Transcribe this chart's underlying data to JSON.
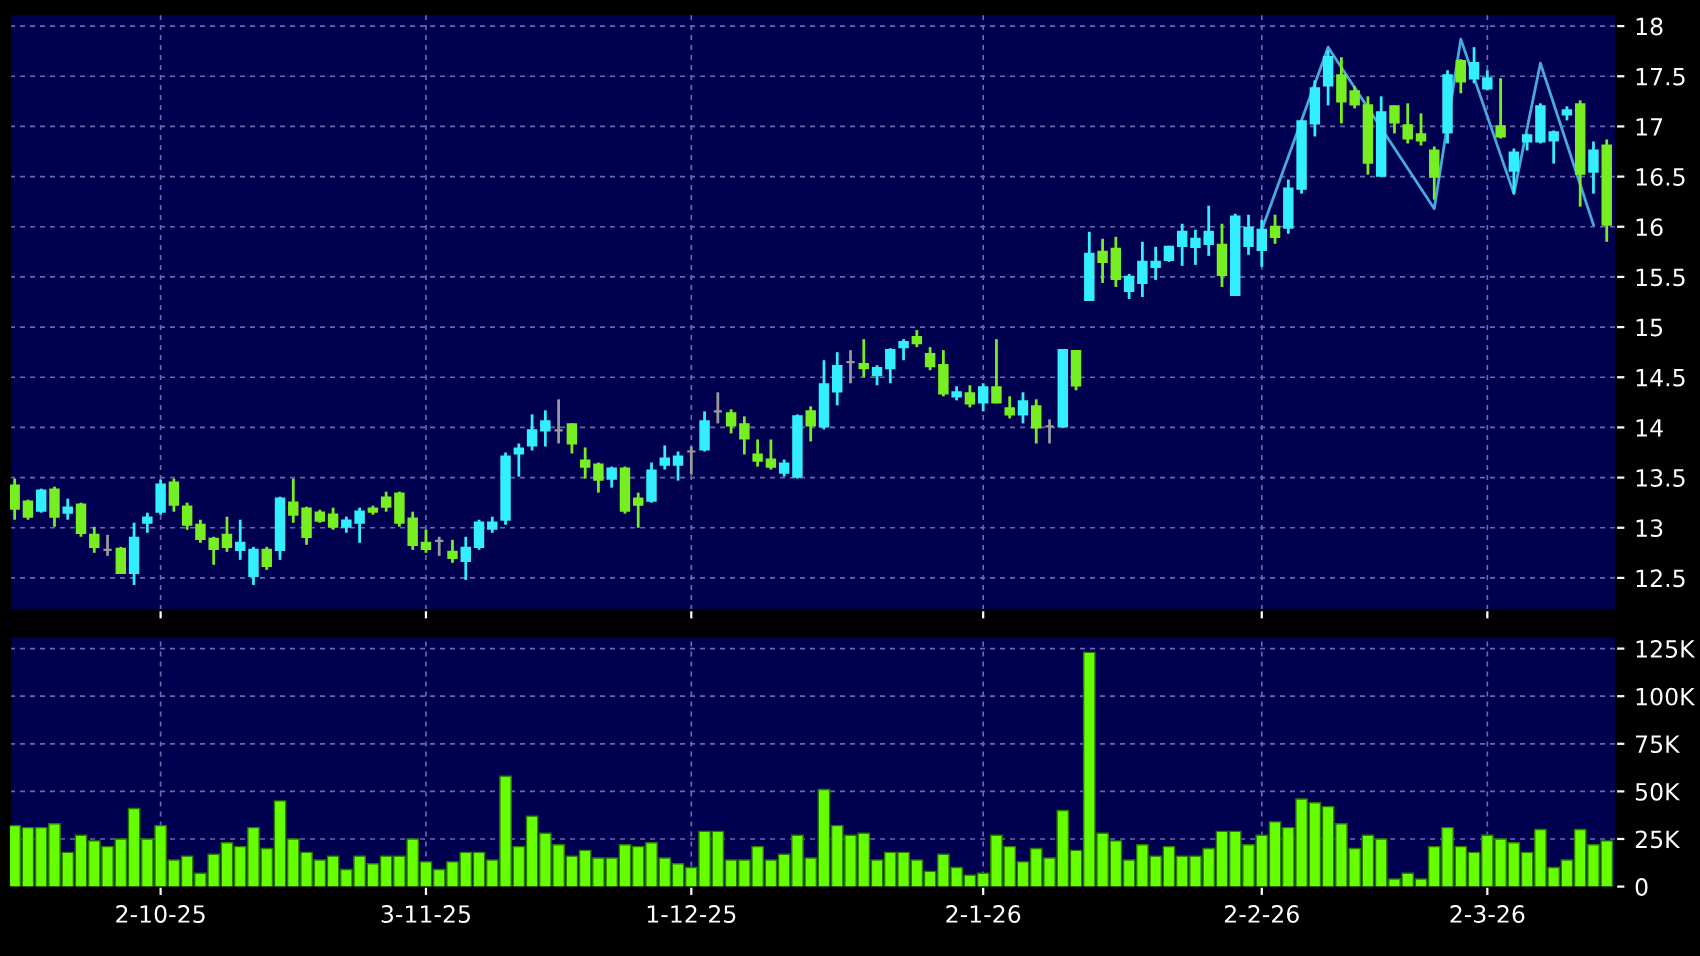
{
  "chart_data": [
    {
      "type": "candlestick",
      "grid": true,
      "tick_labels": "y",
      "ylim": [
        12.18,
        18.12
      ],
      "yticks": [
        12.5,
        13,
        13.5,
        14,
        14.5,
        15,
        15.5,
        16,
        16.5,
        17,
        17.5,
        18
      ],
      "categories": [
        null,
        null,
        null,
        null,
        null,
        null,
        null,
        null,
        null,
        null,
        null,
        null,
        null,
        null,
        null,
        null,
        null,
        null,
        null,
        null,
        null,
        null,
        null,
        null,
        null,
        null,
        null,
        null,
        null,
        null,
        null,
        null,
        null,
        null,
        null,
        null,
        null,
        null,
        null,
        null,
        null,
        null,
        null,
        null,
        null,
        null,
        null,
        null,
        null,
        null,
        null,
        null,
        null,
        null,
        null,
        null,
        null,
        null,
        null,
        null,
        null,
        null,
        null,
        null,
        null,
        null,
        null,
        null,
        null,
        null,
        null,
        null,
        null,
        null,
        null,
        null,
        null,
        null,
        null,
        null,
        null,
        null,
        null,
        null,
        null,
        null,
        null,
        null,
        null,
        null,
        null,
        null,
        null,
        null,
        null,
        null,
        null,
        null,
        null,
        null,
        null,
        null,
        null,
        null,
        null,
        null,
        null,
        null,
        null,
        null,
        null,
        null,
        null,
        null,
        null,
        null,
        null,
        null,
        null,
        null,
        null
      ],
      "ohlc": [
        [
          13.42,
          13.49,
          13.08,
          13.19
        ],
        [
          13.26,
          13.28,
          13.08,
          13.11
        ],
        [
          13.17,
          13.39,
          13.15,
          13.37
        ],
        [
          13.38,
          13.41,
          13.01,
          13.11
        ],
        [
          13.15,
          13.29,
          13.08,
          13.2
        ],
        [
          13.23,
          13.25,
          12.91,
          12.95
        ],
        [
          12.93,
          13.01,
          12.75,
          12.81
        ],
        [
          12.78,
          12.93,
          12.72,
          12.78
        ],
        [
          12.79,
          12.81,
          12.55,
          12.55
        ],
        [
          12.55,
          13.05,
          12.43,
          12.9
        ],
        [
          13.05,
          13.15,
          12.95,
          13.1
        ],
        [
          13.16,
          13.48,
          13.13,
          13.43
        ],
        [
          13.45,
          13.49,
          13.16,
          13.23
        ],
        [
          13.21,
          13.25,
          12.98,
          13.03
        ],
        [
          13.03,
          13.08,
          12.85,
          12.89
        ],
        [
          12.89,
          12.91,
          12.63,
          12.79
        ],
        [
          12.93,
          13.11,
          12.76,
          12.81
        ],
        [
          12.78,
          13.08,
          12.68,
          12.85
        ],
        [
          12.52,
          12.81,
          12.43,
          12.78
        ],
        [
          12.78,
          12.81,
          12.58,
          12.62
        ],
        [
          12.78,
          13.31,
          12.68,
          13.29
        ],
        [
          13.25,
          13.49,
          13.05,
          13.13
        ],
        [
          13.19,
          13.21,
          12.83,
          12.91
        ],
        [
          13.15,
          13.18,
          13.05,
          13.07
        ],
        [
          13.13,
          13.2,
          12.98,
          13.01
        ],
        [
          13.01,
          13.11,
          12.95,
          13.07
        ],
        [
          13.05,
          13.2,
          12.85,
          13.16
        ],
        [
          13.19,
          13.22,
          13.13,
          13.16
        ],
        [
          13.3,
          13.36,
          13.16,
          13.21
        ],
        [
          13.34,
          13.36,
          13.01,
          13.05
        ],
        [
          13.09,
          13.16,
          12.78,
          12.83
        ],
        [
          12.85,
          12.98,
          12.75,
          12.79
        ],
        [
          12.87,
          12.91,
          12.72,
          12.87
        ],
        [
          12.76,
          12.88,
          12.65,
          12.7
        ],
        [
          12.67,
          12.91,
          12.48,
          12.8
        ],
        [
          12.81,
          13.08,
          12.78,
          13.05
        ],
        [
          12.99,
          13.11,
          12.95,
          13.05
        ],
        [
          13.08,
          13.75,
          13.03,
          13.71
        ],
        [
          13.74,
          13.84,
          13.51,
          13.79
        ],
        [
          13.82,
          14.13,
          13.77,
          13.97
        ],
        [
          13.97,
          14.17,
          13.81,
          14.06
        ],
        [
          13.97,
          14.28,
          13.84,
          13.97
        ],
        [
          14.03,
          14.04,
          13.74,
          13.84
        ],
        [
          13.67,
          13.8,
          13.49,
          13.61
        ],
        [
          13.63,
          13.65,
          13.35,
          13.48
        ],
        [
          13.49,
          13.61,
          13.4,
          13.59
        ],
        [
          13.59,
          13.61,
          13.14,
          13.17
        ],
        [
          13.29,
          13.35,
          13.0,
          13.23
        ],
        [
          13.27,
          13.65,
          13.25,
          13.57
        ],
        [
          13.63,
          13.82,
          13.58,
          13.69
        ],
        [
          13.63,
          13.76,
          13.47,
          13.71
        ],
        [
          13.76,
          13.81,
          13.53,
          13.76
        ],
        [
          13.78,
          14.16,
          13.76,
          14.06
        ],
        [
          14.16,
          14.35,
          14.04,
          14.16
        ],
        [
          14.14,
          14.18,
          13.94,
          14.02
        ],
        [
          14.03,
          14.11,
          13.73,
          13.89
        ],
        [
          13.73,
          13.88,
          13.61,
          13.67
        ],
        [
          13.68,
          13.88,
          13.58,
          13.61
        ],
        [
          13.55,
          13.68,
          13.51,
          13.64
        ],
        [
          13.51,
          14.13,
          13.49,
          14.11
        ],
        [
          14.16,
          14.21,
          13.86,
          14.02
        ],
        [
          14.01,
          14.67,
          13.98,
          14.43
        ],
        [
          14.36,
          14.75,
          14.22,
          14.61
        ],
        [
          14.65,
          14.77,
          14.44,
          14.65
        ],
        [
          14.63,
          14.88,
          14.5,
          14.59
        ],
        [
          14.52,
          14.62,
          14.42,
          14.59
        ],
        [
          14.59,
          14.79,
          14.44,
          14.77
        ],
        [
          14.8,
          14.88,
          14.67,
          14.85
        ],
        [
          14.9,
          14.97,
          14.8,
          14.84
        ],
        [
          14.73,
          14.8,
          14.57,
          14.61
        ],
        [
          14.62,
          14.77,
          14.31,
          14.34
        ],
        [
          14.31,
          14.41,
          14.27,
          14.35
        ],
        [
          14.34,
          14.42,
          14.2,
          14.24
        ],
        [
          14.25,
          14.44,
          14.16,
          14.4
        ],
        [
          14.4,
          14.88,
          14.24,
          14.25
        ],
        [
          14.19,
          14.31,
          14.09,
          14.13
        ],
        [
          14.13,
          14.35,
          14.04,
          14.26
        ],
        [
          14.21,
          14.28,
          13.84,
          14.0
        ],
        [
          14.01,
          14.08,
          13.84,
          14.01
        ],
        [
          14.01,
          14.77,
          14.0,
          14.77
        ],
        [
          14.76,
          14.76,
          14.37,
          14.42
        ],
        [
          15.27,
          15.95,
          15.27,
          15.73
        ],
        [
          15.75,
          15.88,
          15.44,
          15.65
        ],
        [
          15.78,
          15.9,
          15.4,
          15.48
        ],
        [
          15.36,
          15.53,
          15.28,
          15.5
        ],
        [
          15.44,
          15.85,
          15.3,
          15.65
        ],
        [
          15.6,
          15.8,
          15.47,
          15.65
        ],
        [
          15.67,
          15.81,
          15.65,
          15.8
        ],
        [
          15.81,
          16.03,
          15.61,
          15.95
        ],
        [
          15.8,
          15.97,
          15.62,
          15.88
        ],
        [
          15.83,
          16.21,
          15.71,
          15.95
        ],
        [
          15.82,
          16.03,
          15.4,
          15.52
        ],
        [
          15.32,
          16.13,
          15.32,
          16.1
        ],
        [
          15.81,
          16.12,
          15.72,
          15.99
        ],
        [
          15.77,
          16.07,
          15.6,
          15.97
        ],
        [
          16.0,
          16.12,
          15.83,
          15.9
        ],
        [
          15.99,
          16.47,
          15.93,
          16.38
        ],
        [
          16.38,
          17.06,
          16.33,
          17.05
        ],
        [
          17.03,
          17.46,
          16.9,
          17.38
        ],
        [
          17.41,
          17.76,
          17.21,
          17.69
        ],
        [
          17.51,
          17.69,
          17.03,
          17.25
        ],
        [
          17.35,
          17.4,
          17.18,
          17.22
        ],
        [
          17.21,
          17.3,
          16.52,
          16.64
        ],
        [
          16.51,
          17.3,
          16.5,
          17.14
        ],
        [
          17.2,
          17.21,
          16.93,
          17.04
        ],
        [
          17.01,
          17.23,
          16.83,
          16.88
        ],
        [
          16.92,
          17.13,
          16.81,
          16.86
        ],
        [
          16.76,
          16.8,
          16.27,
          16.5
        ],
        [
          16.94,
          17.56,
          16.83,
          17.51
        ],
        [
          17.65,
          17.67,
          17.33,
          17.45
        ],
        [
          17.48,
          17.79,
          17.43,
          17.63
        ],
        [
          17.38,
          17.56,
          17.36,
          17.48
        ],
        [
          17.0,
          17.48,
          16.88,
          16.9
        ],
        [
          16.56,
          16.78,
          16.33,
          16.74
        ],
        [
          16.85,
          16.93,
          16.76,
          16.91
        ],
        [
          16.85,
          17.23,
          16.83,
          17.2
        ],
        [
          16.86,
          16.96,
          16.63,
          16.94
        ],
        [
          17.12,
          17.2,
          17.06,
          17.16
        ],
        [
          17.22,
          17.26,
          16.2,
          16.53
        ],
        [
          16.55,
          16.85,
          16.33,
          16.76
        ],
        [
          16.81,
          16.87,
          15.85,
          16.02
        ]
      ],
      "colors": [
        "#77ee22",
        "#77ee22",
        "#33eeff",
        "#77ee22",
        "#33eeff",
        "#77ee22",
        "#77ee22",
        "#999999",
        "#77ee22",
        "#33eeff",
        "#33eeff",
        "#33eeff",
        "#77ee22",
        "#77ee22",
        "#77ee22",
        "#77ee22",
        "#77ee22",
        "#33eeff",
        "#33eeff",
        "#77ee22",
        "#33eeff",
        "#77ee22",
        "#77ee22",
        "#77ee22",
        "#77ee22",
        "#33eeff",
        "#33eeff",
        "#77ee22",
        "#77ee22",
        "#77ee22",
        "#77ee22",
        "#77ee22",
        "#999999",
        "#77ee22",
        "#33eeff",
        "#33eeff",
        "#33eeff",
        "#33eeff",
        "#33eeff",
        "#33eeff",
        "#33eeff",
        "#999999",
        "#77ee22",
        "#77ee22",
        "#77ee22",
        "#33eeff",
        "#77ee22",
        "#77ee22",
        "#33eeff",
        "#33eeff",
        "#33eeff",
        "#999999",
        "#33eeff",
        "#999999",
        "#77ee22",
        "#77ee22",
        "#77ee22",
        "#77ee22",
        "#33eeff",
        "#33eeff",
        "#77ee22",
        "#33eeff",
        "#33eeff",
        "#999999",
        "#77ee22",
        "#33eeff",
        "#33eeff",
        "#33eeff",
        "#77ee22",
        "#77ee22",
        "#77ee22",
        "#33eeff",
        "#77ee22",
        "#33eeff",
        "#77ee22",
        "#77ee22",
        "#33eeff",
        "#77ee22",
        "#999999",
        "#33eeff",
        "#77ee22",
        "#33eeff",
        "#77ee22",
        "#77ee22",
        "#33eeff",
        "#33eeff",
        "#33eeff",
        "#33eeff",
        "#33eeff",
        "#33eeff",
        "#33eeff",
        "#77ee22",
        "#33eeff",
        "#33eeff",
        "#33eeff",
        "#77ee22",
        "#33eeff",
        "#33eeff",
        "#33eeff",
        "#33eeff",
        "#77ee22",
        "#77ee22",
        "#77ee22",
        "#33eeff",
        "#77ee22",
        "#77ee22",
        "#77ee22",
        "#77ee22",
        "#33eeff",
        "#77ee22",
        "#33eeff",
        "#33eeff",
        "#77ee22",
        "#33eeff",
        "#33eeff",
        "#33eeff",
        "#33eeff",
        "#33eeff",
        "#77ee22",
        "#33eeff",
        "#77ee22"
      ],
      "series": [
        {
          "type": "line",
          "color": "#4aa8e0",
          "values": [
            null,
            null,
            null,
            null,
            null,
            null,
            null,
            null,
            null,
            null,
            null,
            null,
            null,
            null,
            null,
            null,
            null,
            null,
            null,
            null,
            null,
            null,
            null,
            null,
            null,
            null,
            null,
            null,
            null,
            null,
            null,
            null,
            null,
            null,
            null,
            null,
            null,
            null,
            null,
            null,
            null,
            null,
            null,
            null,
            null,
            null,
            null,
            null,
            null,
            null,
            null,
            null,
            null,
            null,
            null,
            null,
            null,
            null,
            null,
            null,
            null,
            null,
            null,
            null,
            null,
            null,
            null,
            null,
            null,
            null,
            null,
            null,
            null,
            null,
            null,
            null,
            null,
            null,
            null,
            null,
            null,
            null,
            null,
            null,
            null,
            null,
            null,
            null,
            null,
            null,
            null,
            null,
            null,
            null,
            15.97,
            null,
            null,
            null,
            null,
            17.79,
            null,
            null,
            null,
            null,
            null,
            null,
            null,
            16.18,
            null,
            17.87,
            null,
            null,
            null,
            16.33,
            null,
            17.63,
            null,
            null,
            null,
            16.02,
            null
          ]
        }
      ]
    },
    {
      "type": "bar",
      "grid": true,
      "color": "#66ff00",
      "ylim": [
        0,
        131.6
      ],
      "yticks": [
        {
          "value": 0,
          "label": "0"
        },
        {
          "value": 25,
          "label": "25K"
        },
        {
          "value": 50,
          "label": "50K"
        },
        {
          "value": 75,
          "label": "75K"
        },
        {
          "value": 100,
          "label": "100K"
        },
        {
          "value": 125,
          "label": "125K"
        }
      ],
      "categories": [
        null,
        null,
        null,
        null,
        null,
        null,
        null,
        null,
        null,
        null,
        null,
        "2-10-25",
        null,
        null,
        null,
        null,
        null,
        null,
        null,
        null,
        null,
        null,
        null,
        null,
        null,
        null,
        null,
        null,
        null,
        null,
        null,
        "3-11-25",
        null,
        null,
        null,
        null,
        null,
        null,
        null,
        null,
        null,
        null,
        null,
        null,
        null,
        null,
        null,
        null,
        null,
        null,
        null,
        "1-12-25",
        null,
        null,
        null,
        null,
        null,
        null,
        null,
        null,
        null,
        null,
        null,
        null,
        null,
        null,
        null,
        null,
        null,
        null,
        null,
        null,
        null,
        "2-1-26",
        null,
        null,
        null,
        null,
        null,
        null,
        null,
        null,
        null,
        null,
        null,
        null,
        null,
        null,
        null,
        null,
        null,
        null,
        null,
        null,
        "2-2-26",
        null,
        null,
        null,
        null,
        null,
        null,
        null,
        null,
        null,
        null,
        null,
        null,
        null,
        null,
        null,
        null,
        "2-3-26",
        null,
        null,
        null,
        null,
        null,
        null,
        null,
        null,
        null
      ],
      "values": [
        32,
        31,
        31,
        33,
        18,
        27,
        24,
        21,
        25,
        41,
        25,
        32,
        14,
        16,
        7,
        17,
        23,
        21,
        31,
        20,
        45,
        25,
        18,
        14,
        16,
        9,
        16,
        12,
        16,
        16,
        25,
        13,
        9,
        13,
        18,
        18,
        14,
        58,
        21,
        37,
        28,
        22,
        16,
        19,
        15,
        15,
        22,
        21,
        23,
        15,
        12,
        10,
        29,
        29,
        14,
        14,
        21,
        14,
        17,
        27,
        15,
        51,
        32,
        27,
        28,
        14,
        18,
        18,
        14,
        8,
        17,
        10,
        6,
        7,
        27,
        21,
        13,
        20,
        15,
        40,
        19,
        123,
        28,
        24,
        14,
        22,
        16,
        21,
        16,
        16,
        20,
        29,
        29,
        22,
        27,
        34,
        31,
        46,
        44,
        42,
        33,
        20,
        27,
        25,
        4,
        7,
        4,
        21,
        31,
        21,
        18,
        27,
        25,
        23,
        18,
        30,
        10,
        14,
        30,
        22,
        24
      ]
    }
  ]
}
